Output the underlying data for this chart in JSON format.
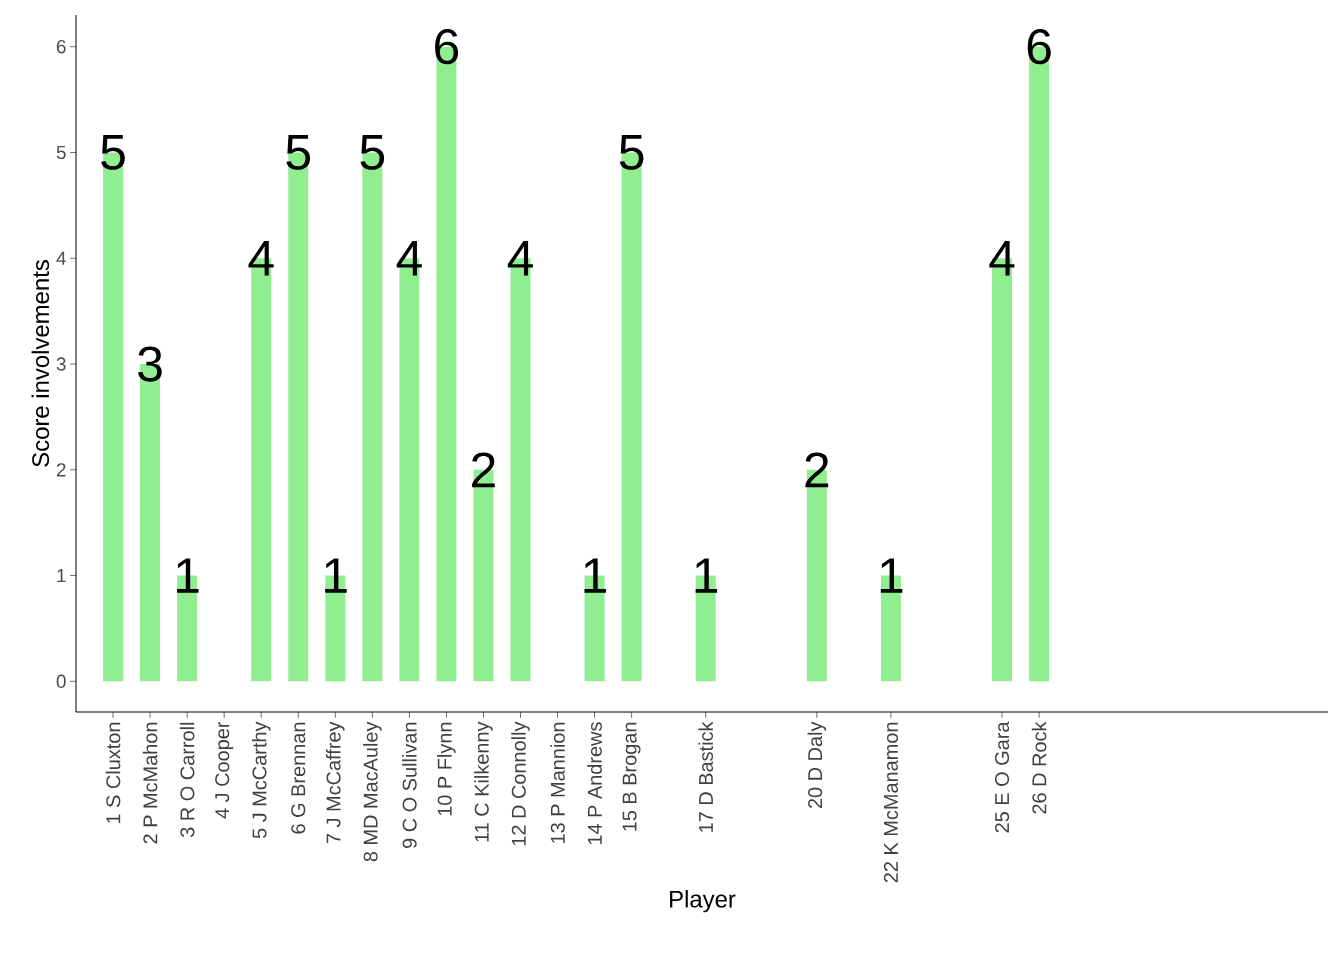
{
  "chart_data": {
    "type": "bar",
    "xlabel": "Player",
    "ylabel": "Score involvements",
    "x": [
      1,
      2,
      3,
      4,
      5,
      6,
      7,
      8,
      9,
      10,
      11,
      12,
      13,
      14,
      15,
      17,
      20,
      22,
      25,
      26
    ],
    "values": [
      5,
      3,
      1,
      0,
      4,
      5,
      1,
      5,
      4,
      6,
      2,
      4,
      0,
      1,
      5,
      1,
      2,
      1,
      4,
      6
    ],
    "value_labels": [
      "5",
      "3",
      "1",
      null,
      "4",
      "5",
      "1",
      "5",
      "4",
      "6",
      "2",
      "4",
      null,
      "1",
      "5",
      "1",
      "2",
      "1",
      "4",
      "6"
    ],
    "color": "#90ee90",
    "xlim": [
      0,
      33.8
    ],
    "xticks": [
      {
        "value": 1,
        "label": "1 S Cluxton"
      },
      {
        "value": 2,
        "label": "2 P McMahon"
      },
      {
        "value": 3,
        "label": "3 R O Carroll"
      },
      {
        "value": 4,
        "label": "4 J Cooper"
      },
      {
        "value": 5,
        "label": "5 J McCarthy"
      },
      {
        "value": 6,
        "label": "6 G Brennan"
      },
      {
        "value": 7,
        "label": "7 J McCaffrey"
      },
      {
        "value": 8,
        "label": "8 MD MacAuley"
      },
      {
        "value": 9,
        "label": "9 C O Sullivan"
      },
      {
        "value": 10,
        "label": "10 P Flynn"
      },
      {
        "value": 11,
        "label": "11 C Kilkenny"
      },
      {
        "value": 12,
        "label": "12 D Connolly"
      },
      {
        "value": 13,
        "label": "13 P Mannion"
      },
      {
        "value": 14,
        "label": "14 P Andrews"
      },
      {
        "value": 15,
        "label": "15 B Brogan"
      },
      {
        "value": 17,
        "label": "17 D Bastick"
      },
      {
        "value": 20,
        "label": "20 D Daly"
      },
      {
        "value": 22,
        "label": "22 K McManamon"
      },
      {
        "value": 25,
        "label": "25 E O Gara"
      },
      {
        "value": 26,
        "label": "26 D Rock"
      }
    ],
    "ylim": [
      -0.29,
      6.3
    ],
    "yticks": [
      0,
      1,
      2,
      3,
      4,
      5,
      6
    ]
  }
}
